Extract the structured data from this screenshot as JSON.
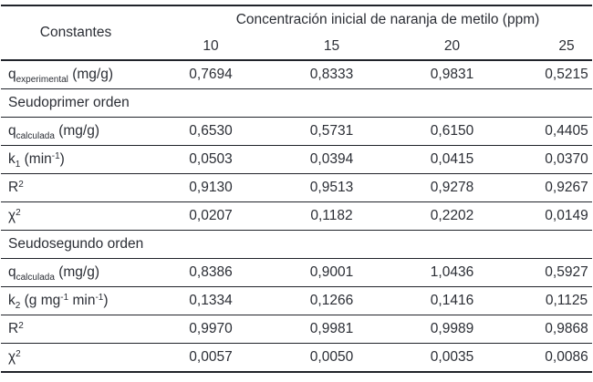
{
  "colors": {
    "text": "#2b2e35",
    "rule": "#20232a",
    "background": "#ffffff"
  },
  "table": {
    "header": {
      "constants_label": "Constantes",
      "concentration_label": "Concentración inicial de naranja de metilo (ppm)",
      "concentrations": [
        "10",
        "15",
        "20",
        "25"
      ]
    },
    "rows": [
      {
        "type": "data",
        "label": [
          {
            "t": "q"
          },
          {
            "t": "experimental",
            "s": "sub"
          },
          {
            "t": " (mg/g)"
          }
        ],
        "values": [
          "0,7694",
          "0,8333",
          "0,9831",
          "0,5215"
        ]
      },
      {
        "type": "section",
        "label": [
          {
            "t": "Seudoprimer orden"
          }
        ]
      },
      {
        "type": "data",
        "label": [
          {
            "t": "q"
          },
          {
            "t": "calculada",
            "s": "sub"
          },
          {
            "t": " (mg/g)"
          }
        ],
        "values": [
          "0,6530",
          "0,5731",
          "0,6150",
          "0,4405"
        ]
      },
      {
        "type": "data",
        "label": [
          {
            "t": "k"
          },
          {
            "t": "1",
            "s": "sub"
          },
          {
            "t": " (min"
          },
          {
            "t": "-1",
            "s": "sup"
          },
          {
            "t": ")"
          }
        ],
        "values": [
          "0,0503",
          "0,0394",
          "0,0415",
          "0,0370"
        ]
      },
      {
        "type": "data",
        "label": [
          {
            "t": "R"
          },
          {
            "t": "2",
            "s": "sup"
          }
        ],
        "values": [
          "0,9130",
          "0,9513",
          "0,9278",
          "0,9267"
        ]
      },
      {
        "type": "data",
        "label": [
          {
            "t": "χ"
          },
          {
            "t": "2",
            "s": "sup"
          }
        ],
        "values": [
          "0,0207",
          "0,1182",
          "0,2202",
          "0,0149"
        ]
      },
      {
        "type": "section",
        "label": [
          {
            "t": "Seudosegundo orden"
          }
        ]
      },
      {
        "type": "data",
        "label": [
          {
            "t": "q"
          },
          {
            "t": "calculada",
            "s": "sub"
          },
          {
            "t": " (mg/g)"
          }
        ],
        "values": [
          "0,8386",
          "0,9001",
          "1,0436",
          "0,5927"
        ]
      },
      {
        "type": "data",
        "label": [
          {
            "t": "k"
          },
          {
            "t": "2",
            "s": "sub"
          },
          {
            "t": " (g mg"
          },
          {
            "t": "-1",
            "s": "sup"
          },
          {
            "t": " min"
          },
          {
            "t": "-1",
            "s": "sup"
          },
          {
            "t": ")"
          }
        ],
        "values": [
          "0,1334",
          "0,1266",
          "0,1416",
          "0,1125"
        ]
      },
      {
        "type": "data",
        "label": [
          {
            "t": "R"
          },
          {
            "t": "2",
            "s": "sup"
          }
        ],
        "values": [
          "0,9970",
          "0,9981",
          "0,9989",
          "0,9868"
        ]
      },
      {
        "type": "data",
        "label": [
          {
            "t": "χ"
          },
          {
            "t": "2",
            "s": "sup"
          }
        ],
        "values": [
          "0,0057",
          "0,0050",
          "0,0035",
          "0,0086"
        ]
      }
    ]
  }
}
